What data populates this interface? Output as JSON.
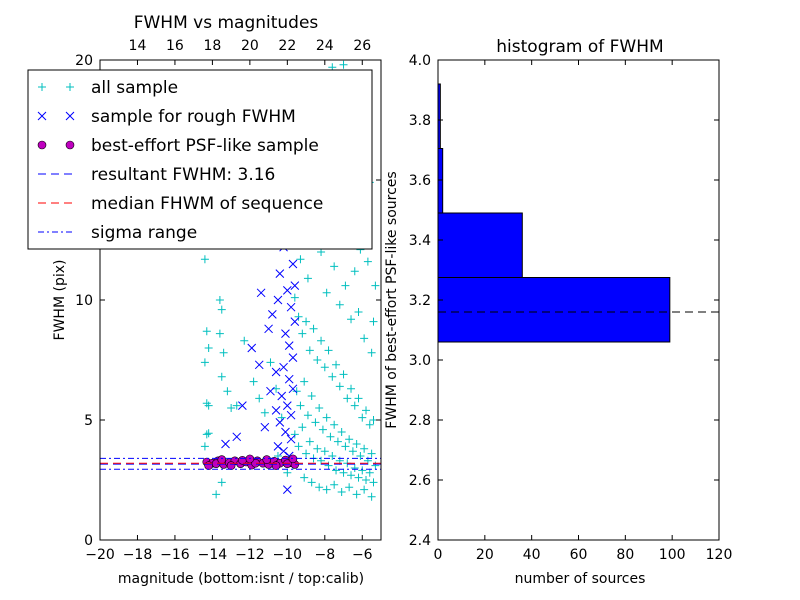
{
  "chart_data": [
    {
      "type": "scatter",
      "title": "FWHM vs magnitudes",
      "xlabel": "magnitude (bottom:isnt / top:calib)",
      "ylabel": "FWHM (pix)",
      "xlim": [
        -20,
        -5
      ],
      "ylim": [
        0,
        20
      ],
      "xticks": [
        "−20",
        "−18",
        "−16",
        "−14",
        "−12",
        "−10",
        "−8",
        "−6"
      ],
      "xtick_values": [
        -20,
        -18,
        -16,
        -14,
        -12,
        -10,
        -8,
        -6
      ],
      "yticks": [
        "0",
        "5",
        "10",
        "15",
        "20"
      ],
      "ytick_values": [
        0,
        5,
        10,
        15,
        20
      ],
      "top_xticks": [
        "14",
        "16",
        "18",
        "20",
        "22",
        "24",
        "26"
      ],
      "top_xtick_values": [
        14,
        16,
        18,
        20,
        22,
        24,
        26
      ],
      "top_offset": 32,
      "grid": false,
      "legend_position": "upper-left",
      "colors": {
        "all": "#00bfbf",
        "rough": "#0000ff",
        "best_fill": "#bf00bf",
        "resultant": "#0000ff",
        "median": "#ff0000",
        "sigma": "#0000ff"
      },
      "legend": [
        {
          "key": "all",
          "label": "all sample"
        },
        {
          "key": "rough",
          "label": "sample for rough FWHM"
        },
        {
          "key": "best",
          "label": "best-effort PSF-like sample"
        },
        {
          "key": "resultant",
          "label": "resultant FWHM: 3.16"
        },
        {
          "key": "median",
          "label": "median FHWM of sequence"
        },
        {
          "key": "sigma",
          "label": "sigma range"
        }
      ],
      "series": [
        {
          "name": "all sample",
          "marker": "+",
          "points": [
            [
              -14.5,
              16.5
            ],
            [
              -14.4,
              11.7
            ],
            [
              -14.3,
              8.7
            ],
            [
              -14.2,
              8.0
            ],
            [
              -14.4,
              7.4
            ],
            [
              -14.3,
              5.7
            ],
            [
              -14.2,
              5.6
            ],
            [
              -14.3,
              4.4
            ],
            [
              -14.2,
              4.45
            ],
            [
              -14.4,
              3.9
            ],
            [
              -13.6,
              10.0
            ],
            [
              -13.5,
              9.6
            ],
            [
              -13.6,
              8.6
            ],
            [
              -13.4,
              7.8
            ],
            [
              -13.5,
              6.8
            ],
            [
              -13.2,
              6.2
            ],
            [
              -13.0,
              5.5
            ],
            [
              -13.5,
              2.4
            ],
            [
              -13.8,
              1.9
            ],
            [
              -12.7,
              5.6
            ],
            [
              -12.3,
              8.3
            ],
            [
              -11.8,
              6.6
            ],
            [
              -11.5,
              5.9
            ],
            [
              -11.2,
              5.3
            ],
            [
              -10.9,
              7.4
            ],
            [
              -10.6,
              6.3
            ],
            [
              -10.3,
              5.1
            ],
            [
              -10.5,
              3.5
            ],
            [
              -10.0,
              2.8
            ],
            [
              -9.7,
              3.1
            ],
            [
              -9.3,
              18.2
            ],
            [
              -9.0,
              17.0
            ],
            [
              -8.7,
              18.7
            ],
            [
              -8.4,
              16.2
            ],
            [
              -8.1,
              15.3
            ],
            [
              -7.8,
              13.5
            ],
            [
              -7.6,
              19.7
            ],
            [
              -7.4,
              16.7
            ],
            [
              -7.0,
              19.8
            ],
            [
              -6.7,
              14.3
            ],
            [
              -6.4,
              11.2
            ],
            [
              -6.1,
              12.1
            ],
            [
              -5.8,
              18.9
            ],
            [
              -5.6,
              14.9
            ],
            [
              -5.3,
              10.6
            ],
            [
              -9.5,
              13.3
            ],
            [
              -9.3,
              11.7
            ],
            [
              -8.9,
              10.9
            ],
            [
              -8.6,
              13.6
            ],
            [
              -8.2,
              12.0
            ],
            [
              -7.9,
              10.3
            ],
            [
              -7.5,
              11.4
            ],
            [
              -7.2,
              9.8
            ],
            [
              -6.9,
              10.6
            ],
            [
              -6.6,
              9.2
            ],
            [
              -6.2,
              9.5
            ],
            [
              -5.9,
              8.4
            ],
            [
              -5.5,
              7.8
            ],
            [
              -9.6,
              10.1
            ],
            [
              -9.4,
              9.3
            ],
            [
              -9.2,
              8.6
            ],
            [
              -9.0,
              9.1
            ],
            [
              -8.8,
              7.9
            ],
            [
              -8.6,
              8.8
            ],
            [
              -8.4,
              7.5
            ],
            [
              -8.2,
              8.3
            ],
            [
              -8.0,
              7.2
            ],
            [
              -7.8,
              7.9
            ],
            [
              -7.6,
              6.8
            ],
            [
              -7.4,
              7.3
            ],
            [
              -7.2,
              6.4
            ],
            [
              -7.0,
              6.9
            ],
            [
              -6.8,
              5.9
            ],
            [
              -6.6,
              6.3
            ],
            [
              -6.4,
              5.6
            ],
            [
              -6.2,
              5.9
            ],
            [
              -6.0,
              5.1
            ],
            [
              -5.8,
              5.4
            ],
            [
              -5.6,
              4.8
            ],
            [
              -5.4,
              5.0
            ],
            [
              -9.5,
              6.2
            ],
            [
              -9.3,
              5.6
            ],
            [
              -9.1,
              6.6
            ],
            [
              -8.9,
              5.2
            ],
            [
              -8.7,
              6.0
            ],
            [
              -8.5,
              4.9
            ],
            [
              -8.3,
              5.5
            ],
            [
              -8.1,
              4.6
            ],
            [
              -7.9,
              5.1
            ],
            [
              -7.7,
              4.3
            ],
            [
              -7.5,
              4.8
            ],
            [
              -7.3,
              4.1
            ],
            [
              -7.1,
              4.5
            ],
            [
              -6.9,
              3.9
            ],
            [
              -6.7,
              4.2
            ],
            [
              -6.5,
              3.7
            ],
            [
              -6.3,
              4.0
            ],
            [
              -6.1,
              3.5
            ],
            [
              -5.9,
              3.8
            ],
            [
              -5.7,
              3.3
            ],
            [
              -5.5,
              3.6
            ],
            [
              -5.3,
              3.1
            ],
            [
              -9.6,
              4.4
            ],
            [
              -9.4,
              3.9
            ],
            [
              -9.2,
              4.7
            ],
            [
              -9.0,
              3.6
            ],
            [
              -8.8,
              4.1
            ],
            [
              -8.6,
              3.4
            ],
            [
              -8.4,
              3.8
            ],
            [
              -8.2,
              3.3
            ],
            [
              -8.0,
              3.7
            ],
            [
              -7.8,
              3.1
            ],
            [
              -7.6,
              3.5
            ],
            [
              -7.4,
              2.9
            ],
            [
              -7.2,
              3.3
            ],
            [
              -7.0,
              2.8
            ],
            [
              -6.8,
              3.2
            ],
            [
              -6.6,
              2.7
            ],
            [
              -6.4,
              3.0
            ],
            [
              -6.2,
              2.6
            ],
            [
              -6.0,
              2.9
            ],
            [
              -5.8,
              2.5
            ],
            [
              -5.6,
              2.8
            ],
            [
              -5.4,
              2.4
            ],
            [
              -9.1,
              2.6
            ],
            [
              -8.7,
              2.4
            ],
            [
              -8.3,
              2.2
            ],
            [
              -7.9,
              2.1
            ],
            [
              -7.5,
              2.3
            ],
            [
              -7.1,
              2.0
            ],
            [
              -6.7,
              2.2
            ],
            [
              -6.3,
              1.9
            ],
            [
              -5.9,
              2.1
            ],
            [
              -5.5,
              1.8
            ],
            [
              -8.5,
              14.8
            ],
            [
              -7.7,
              12.6
            ],
            [
              -7.1,
              13.1
            ],
            [
              -6.5,
              12.8
            ],
            [
              -5.7,
              11.6
            ],
            [
              -5.4,
              9.1
            ]
          ]
        },
        {
          "name": "sample for rough FWHM",
          "marker": "x",
          "points": [
            [
              -12.1,
              14.5
            ],
            [
              -11.7,
              13.3
            ],
            [
              -11.3,
              12.6
            ],
            [
              -11.0,
              14.0
            ],
            [
              -10.7,
              13.0
            ],
            [
              -10.4,
              11.1
            ],
            [
              -10.2,
              12.2
            ],
            [
              -10.0,
              15.2
            ],
            [
              -9.8,
              16.3
            ],
            [
              -9.7,
              14.1
            ],
            [
              -9.9,
              12.4
            ],
            [
              -9.7,
              11.5
            ],
            [
              -10.0,
              10.4
            ],
            [
              -9.8,
              9.7
            ],
            [
              -9.6,
              9.1
            ],
            [
              -10.1,
              8.6
            ],
            [
              -9.9,
              8.1
            ],
            [
              -9.7,
              7.6
            ],
            [
              -10.2,
              7.2
            ],
            [
              -9.9,
              6.7
            ],
            [
              -9.7,
              6.3
            ],
            [
              -10.3,
              6.0
            ],
            [
              -10.0,
              5.6
            ],
            [
              -9.8,
              5.2
            ],
            [
              -10.4,
              4.9
            ],
            [
              -10.1,
              4.5
            ],
            [
              -9.8,
              4.2
            ],
            [
              -10.5,
              3.9
            ],
            [
              -10.2,
              3.7
            ],
            [
              -9.9,
              3.5
            ],
            [
              -11.9,
              8.0
            ],
            [
              -11.5,
              7.3
            ],
            [
              -11.0,
              8.8
            ],
            [
              -10.8,
              9.4
            ],
            [
              -10.6,
              7.0
            ],
            [
              -10.9,
              6.2
            ],
            [
              -10.6,
              5.4
            ],
            [
              -11.2,
              4.7
            ],
            [
              -12.4,
              5.6
            ],
            [
              -12.7,
              4.3
            ],
            [
              -13.3,
              4.0
            ],
            [
              -10.0,
              2.1
            ],
            [
              -9.6,
              13.0
            ],
            [
              -9.6,
              10.6
            ],
            [
              -10.5,
              10.0
            ],
            [
              -11.4,
              10.3
            ]
          ]
        },
        {
          "name": "best-effort PSF-like sample",
          "marker": "o",
          "points": [
            [
              -14.3,
              3.25
            ],
            [
              -14.0,
              3.2
            ],
            [
              -13.7,
              3.3
            ],
            [
              -13.4,
              3.15
            ],
            [
              -13.1,
              3.22
            ],
            [
              -12.8,
              3.3
            ],
            [
              -12.5,
              3.18
            ],
            [
              -12.2,
              3.25
            ],
            [
              -11.9,
              3.12
            ],
            [
              -11.6,
              3.3
            ],
            [
              -11.3,
              3.2
            ],
            [
              -11.0,
              3.15
            ],
            [
              -10.7,
              3.28
            ],
            [
              -10.4,
              3.2
            ],
            [
              -10.1,
              3.33
            ],
            [
              -9.8,
              3.22
            ],
            [
              -9.6,
              3.15
            ],
            [
              -14.2,
              3.1
            ],
            [
              -13.8,
              3.18
            ],
            [
              -13.0,
              3.1
            ],
            [
              -12.4,
              3.32
            ],
            [
              -11.7,
              3.2
            ],
            [
              -11.1,
              3.35
            ],
            [
              -10.6,
              3.1
            ],
            [
              -10.0,
              3.18
            ],
            [
              -9.7,
              3.38
            ],
            [
              -12.0,
              3.38
            ],
            [
              -13.5,
              3.35
            ]
          ]
        }
      ],
      "hlines": [
        {
          "key": "resultant",
          "y": 3.16,
          "style": "dashed"
        },
        {
          "key": "median",
          "y": 3.2,
          "style": "dashed"
        },
        {
          "key": "sigma",
          "y": 3.4,
          "style": "dashdot"
        },
        {
          "key": "sigma",
          "y": 2.95,
          "style": "dashdot"
        }
      ]
    },
    {
      "type": "bar",
      "orientation": "horizontal",
      "title": "histogram of FWHM",
      "xlabel": "number of sources",
      "ylabel": "FWHM of best-effort PSF-like sources",
      "xlim": [
        0,
        120
      ],
      "ylim": [
        2.4,
        4.0
      ],
      "xticks": [
        "0",
        "20",
        "40",
        "60",
        "80",
        "100",
        "120"
      ],
      "xtick_values": [
        0,
        20,
        40,
        60,
        80,
        100,
        120
      ],
      "yticks": [
        "2.4",
        "2.6",
        "2.8",
        "3.0",
        "3.2",
        "3.4",
        "3.6",
        "3.8",
        "4.0"
      ],
      "ytick_values": [
        2.4,
        2.6,
        2.8,
        3.0,
        3.2,
        3.4,
        3.6,
        3.8,
        4.0
      ],
      "grid": false,
      "bar_color": "#0000ff",
      "bins": [
        {
          "y0": 3.06,
          "y1": 3.275,
          "count": 99
        },
        {
          "y0": 3.275,
          "y1": 3.49,
          "count": 36
        },
        {
          "y0": 3.49,
          "y1": 3.705,
          "count": 2
        },
        {
          "y0": 3.705,
          "y1": 3.92,
          "count": 1
        }
      ],
      "hline": {
        "y": 3.16,
        "style": "dashed",
        "color": "#000000"
      }
    }
  ]
}
